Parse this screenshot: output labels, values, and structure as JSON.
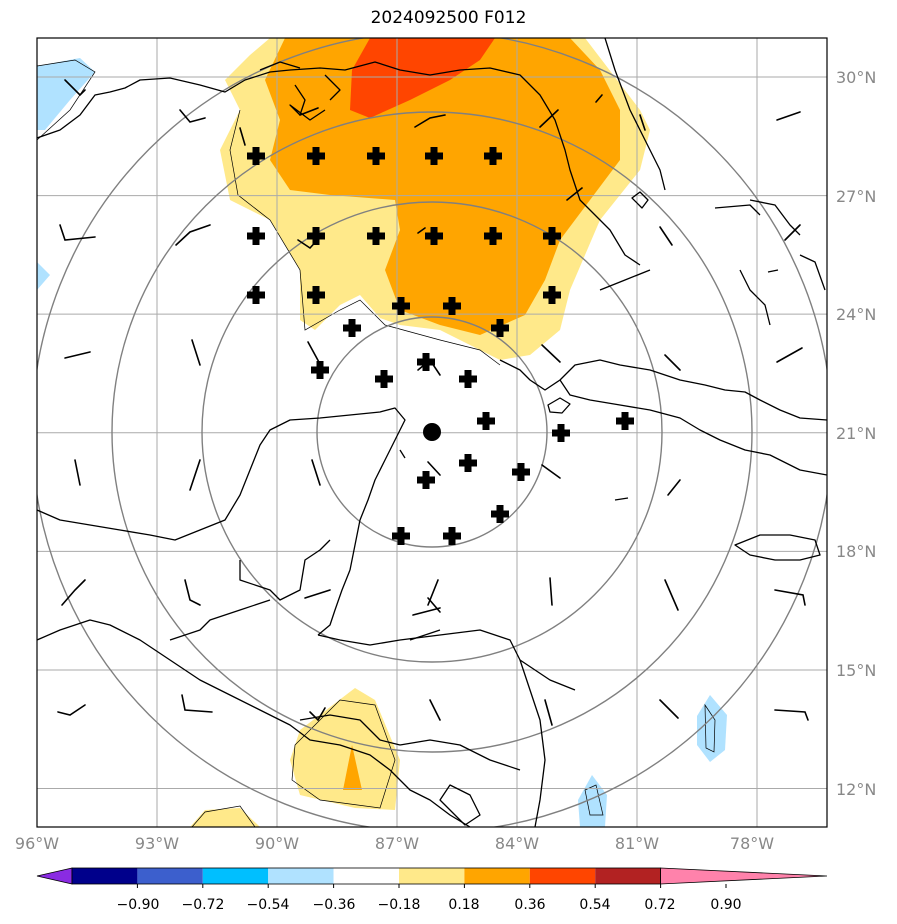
{
  "title": "2024092500 F012",
  "map": {
    "lat_labels": [
      "30°N",
      "27°N",
      "24°N",
      "21°N",
      "18°N",
      "15°N",
      "12°N"
    ],
    "lon_labels": [
      "96°W",
      "93°W",
      "90°W",
      "87°W",
      "84°W",
      "81°W",
      "78°W"
    ],
    "lat_values": [
      30,
      27,
      24,
      21,
      18,
      15,
      12
    ],
    "lon_values": [
      -96,
      -93,
      -90,
      -87,
      -84,
      -81,
      -78
    ],
    "extent": {
      "lon_min": -96,
      "lon_max": -76,
      "lat_min": 11,
      "lat_max": 31
    },
    "center": {
      "lon": -86.1,
      "lat": 21.0
    }
  },
  "colorbar": {
    "ticks": [
      "−0.90",
      "−0.72",
      "−0.54",
      "−0.36",
      "−0.18",
      "0.18",
      "0.36",
      "0.54",
      "0.72",
      "0.90"
    ],
    "colors": [
      "#8a2be2",
      "#00008b",
      "#3c5fcd",
      "#00bfff",
      "#b0e2ff",
      "#ffffff",
      "#ffe98a",
      "#ffa500",
      "#ff4500",
      "#b22222",
      "#ff82ab"
    ]
  },
  "colors": {
    "light_yellow": "#ffe98a",
    "orange": "#ffa500",
    "red_orange": "#ff4500",
    "light_blue": "#b0e2ff",
    "grid": "#888888",
    "coast": "#000000"
  }
}
